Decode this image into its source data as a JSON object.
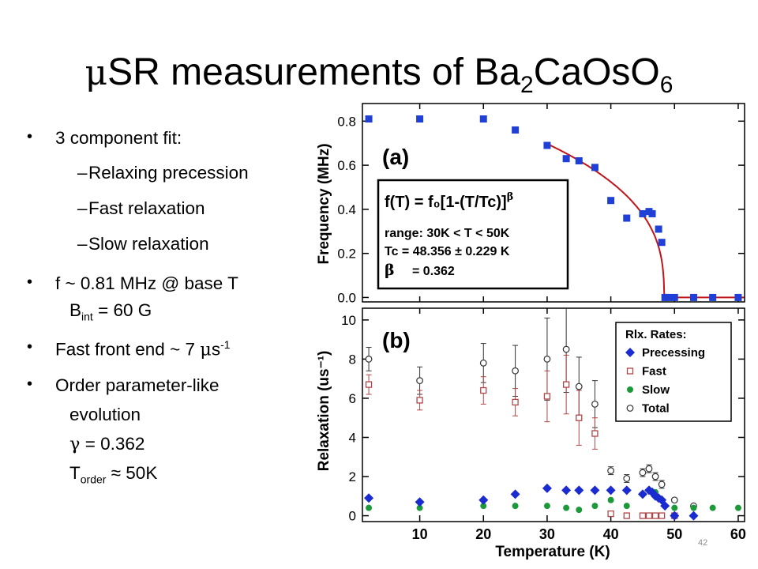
{
  "slide": {
    "title_pre": "SR measurements of Ba",
    "title_mu": "μ",
    "title_sub1": "2",
    "title_mid": "CaOsO",
    "title_sub2": "6",
    "page_number": "42"
  },
  "bullets": {
    "b1": "3 component fit:",
    "sub1": "Relaxing precession",
    "sub2": "Fast relaxation",
    "sub3": "Slow relaxation",
    "b2": "f ~ 0.81 MHz @ base T",
    "b2_cont_pre": "B",
    "b2_cont_sub": "int",
    "b2_cont_post": " = 60 G",
    "b3_pre": "Fast front end ~ 7 ",
    "b3_mu": "μ",
    "b3_s": "s",
    "b3_sup": "-1",
    "b4": "Order parameter-like",
    "b4_l2": "evolution",
    "b4_gamma": "γ",
    "b4_l3": " = 0.362",
    "b4_t": "T",
    "b4_t_sub": "order",
    "b4_approx": " ≈ 50K",
    "bullet_glyph": "•",
    "dash_glyph": "–"
  },
  "chart_data": [
    {
      "type": "scatter",
      "panel_label": "(a)",
      "ylabel": "Frequency (MHz)",
      "xlim": [
        1,
        61
      ],
      "ylim": [
        -0.02,
        0.88
      ],
      "yticks": [
        0.0,
        0.2,
        0.4,
        0.6,
        0.8
      ],
      "ytick_labels": [
        "0.0",
        "0.2",
        "0.4",
        "0.6",
        "0.8"
      ],
      "series": [
        {
          "marker": "square",
          "color": "#1f3fd6",
          "x": [
            2,
            10,
            20,
            25,
            30,
            33,
            35,
            37.5,
            40,
            42.5,
            45,
            46,
            46.5,
            47.5,
            48,
            48.5,
            49,
            50,
            53,
            56,
            60
          ],
          "y": [
            0.81,
            0.81,
            0.81,
            0.76,
            0.69,
            0.63,
            0.62,
            0.59,
            0.44,
            0.36,
            0.38,
            0.39,
            0.38,
            0.31,
            0.25,
            0.0,
            0.0,
            0.0,
            0.0,
            0.0,
            0.0
          ]
        }
      ],
      "fit": {
        "color": "#c0141a",
        "f0": 0.99,
        "Tc": 48.356,
        "beta": 0.362,
        "x_start": 30,
        "x_end": 61
      },
      "annotation": {
        "formula": "f(T) = f₀[1-(T/Tc)]",
        "formula_sup": "β",
        "range": "range: 30K < T < 50K",
        "tc": "Tc  =  48.356 ± 0.229 K",
        "beta_sym": "β",
        "beta_val": "=     0.362"
      }
    },
    {
      "type": "scatter",
      "panel_label": "(b)",
      "xlabel": "Temperature (K)",
      "ylabel": "Relaxation (us⁻¹)",
      "xlim": [
        1,
        61
      ],
      "ylim": [
        -0.3,
        10.6
      ],
      "xticks": [
        10,
        20,
        30,
        40,
        50,
        60
      ],
      "xtick_labels": [
        "10",
        "20",
        "30",
        "40",
        "50",
        "60"
      ],
      "yticks": [
        0,
        2,
        4,
        6,
        8,
        10
      ],
      "ytick_labels": [
        "0",
        "2",
        "4",
        "6",
        "8",
        "10"
      ],
      "legend_title": "Rlx. Rates:",
      "legend_position": "top-right",
      "series": [
        {
          "name": "Precessing",
          "marker": "diamond",
          "color": "#1a2bd0",
          "x": [
            2,
            10,
            20,
            25,
            30,
            33,
            35,
            37.5,
            40,
            42.5,
            45,
            46,
            46.5,
            47,
            47.5,
            48,
            48.5,
            50,
            53
          ],
          "y": [
            0.9,
            0.7,
            0.8,
            1.1,
            1.4,
            1.3,
            1.3,
            1.3,
            1.3,
            1.3,
            1.1,
            1.3,
            1.2,
            1.0,
            0.9,
            0.8,
            0.5,
            0.0,
            0.0
          ]
        },
        {
          "name": "Fast",
          "marker": "square-open",
          "color": "#b0474a",
          "x": [
            2,
            10,
            20,
            25,
            30,
            33,
            35,
            37.5,
            40,
            42.5,
            45,
            46,
            47,
            48,
            50
          ],
          "y": [
            6.7,
            5.9,
            6.4,
            5.8,
            6.1,
            6.7,
            5.0,
            4.2,
            0.1,
            0.0,
            0.0,
            0.0,
            0.0,
            0.0,
            0.0
          ],
          "err": [
            0.5,
            0.5,
            0.7,
            0.7,
            1.3,
            1.5,
            1.4,
            0.8,
            0,
            0,
            0,
            0,
            0,
            0,
            0
          ]
        },
        {
          "name": "Slow",
          "marker": "circle",
          "color": "#1c9a3a",
          "x": [
            2,
            10,
            20,
            25,
            30,
            33,
            35,
            37.5,
            40,
            42.5,
            45,
            46,
            47,
            48,
            50,
            53,
            56,
            60
          ],
          "y": [
            0.4,
            0.4,
            0.5,
            0.5,
            0.5,
            0.4,
            0.3,
            0.5,
            0.8,
            0.5,
            1.1,
            1.3,
            1.2,
            0.8,
            0.4,
            0.4,
            0.4,
            0.4
          ]
        },
        {
          "name": "Total",
          "marker": "circle-open",
          "color": "#333333",
          "x": [
            2,
            10,
            20,
            25,
            30,
            33,
            35,
            37.5,
            40,
            42.5,
            45,
            46,
            47,
            48,
            50,
            53
          ],
          "y": [
            8.0,
            6.9,
            7.8,
            7.4,
            8.0,
            8.5,
            6.6,
            5.7,
            2.3,
            1.9,
            2.2,
            2.4,
            2.0,
            1.6,
            0.8,
            0.5
          ],
          "err": [
            0.6,
            0.7,
            1.0,
            1.3,
            2.1,
            2.2,
            1.5,
            1.2,
            0.2,
            0.2,
            0.2,
            0.2,
            0.2,
            0.2,
            0,
            0
          ]
        }
      ]
    }
  ]
}
